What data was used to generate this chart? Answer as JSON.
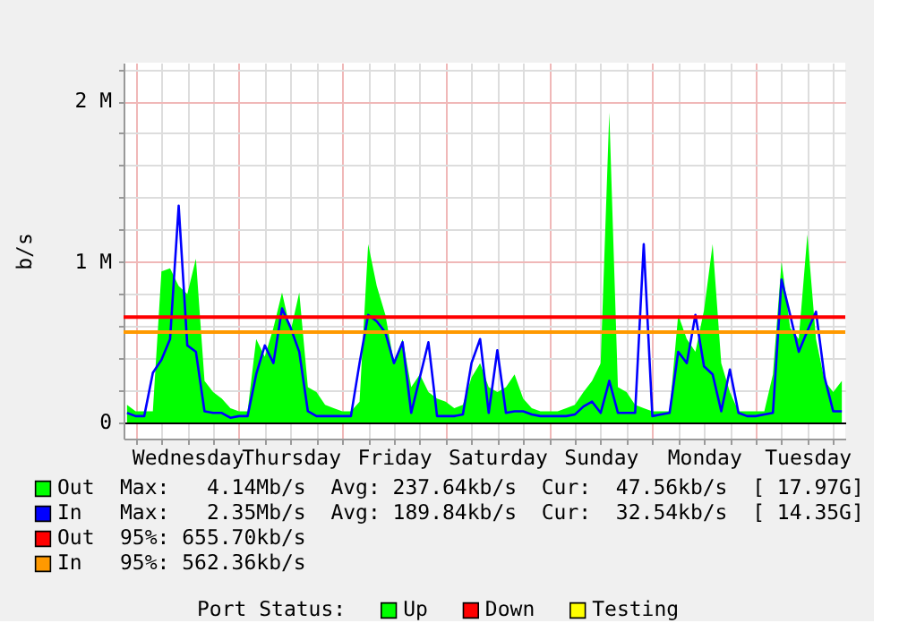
{
  "chart_data": [
    {
      "type": "area",
      "ylabel": "b/s",
      "categories": [
        null,
        null,
        null,
        null,
        null,
        null,
        null,
        "Wednesday",
        null,
        null,
        null,
        null,
        null,
        null,
        null,
        null,
        null,
        null,
        null,
        "Thursday",
        null,
        null,
        null,
        null,
        null,
        null,
        null,
        null,
        null,
        null,
        null,
        "Friday",
        null,
        null,
        null,
        null,
        null,
        null,
        null,
        null,
        null,
        null,
        null,
        "Saturday",
        null,
        null,
        null,
        null,
        null,
        null,
        null,
        null,
        null,
        null,
        null,
        "Sunday",
        null,
        null,
        null,
        null,
        null,
        null,
        null,
        null,
        null,
        null,
        null,
        "Monday",
        null,
        null,
        null,
        null,
        null,
        null,
        null,
        null,
        null,
        null,
        null,
        "Tuesday",
        null,
        null,
        null,
        null
      ],
      "ylim": [
        -0.1,
        2.24
      ],
      "yticks": [
        0,
        {
          "value": 0.2,
          "label": null
        },
        {
          "value": 0.4,
          "label": null
        },
        {
          "value": 0.6,
          "label": null
        },
        {
          "value": 0.8,
          "label": null
        },
        {
          "value": 1,
          "label": "1 M"
        },
        {
          "value": 1.2,
          "label": null
        },
        {
          "value": 1.4,
          "label": null
        },
        {
          "value": 1.6,
          "label": null
        },
        {
          "value": 1.8,
          "label": null
        },
        {
          "value": 2,
          "label": "2 M"
        },
        {
          "value": 2.2,
          "label": null
        }
      ],
      "grid": true,
      "legend": "bottom",
      "series": [
        {
          "name": "Out",
          "type": "area",
          "color": "#00ff00",
          "values": [
            0.11,
            0.07,
            0.07,
            0.07,
            0.94,
            0.96,
            0.85,
            0.8,
            1.02,
            0.26,
            0.19,
            0.15,
            0.09,
            0.07,
            0.07,
            0.52,
            0.41,
            0.59,
            0.81,
            0.57,
            0.81,
            0.22,
            0.19,
            0.11,
            0.09,
            0.07,
            0.07,
            0.13,
            1.11,
            0.85,
            0.67,
            0.37,
            0.52,
            0.22,
            0.3,
            0.19,
            0.15,
            0.13,
            0.09,
            0.11,
            0.28,
            0.37,
            0.22,
            0.19,
            0.22,
            0.3,
            0.15,
            0.09,
            0.07,
            0.07,
            0.07,
            0.09,
            0.11,
            0.19,
            0.26,
            0.37,
            1.93,
            0.22,
            0.19,
            0.11,
            0.09,
            0.07,
            0.07,
            0.07,
            0.67,
            0.52,
            0.44,
            0.7,
            1.11,
            0.37,
            0.19,
            0.07,
            0.07,
            0.07,
            0.07,
            0.3,
            1.0,
            0.59,
            0.52,
            1.17,
            0.52,
            0.26,
            0.19,
            0.26
          ]
        },
        {
          "name": "In",
          "type": "line",
          "color": "#0000ff",
          "values": [
            0.06,
            0.04,
            0.04,
            0.31,
            0.39,
            0.52,
            1.35,
            0.48,
            0.44,
            0.07,
            0.06,
            0.06,
            0.03,
            0.04,
            0.04,
            0.3,
            0.48,
            0.37,
            0.71,
            0.59,
            0.44,
            0.07,
            0.04,
            0.04,
            0.04,
            0.04,
            0.04,
            0.37,
            0.67,
            0.63,
            0.56,
            0.37,
            0.5,
            0.06,
            0.28,
            0.5,
            0.04,
            0.04,
            0.04,
            0.05,
            0.37,
            0.52,
            0.06,
            0.45,
            0.06,
            0.07,
            0.07,
            0.05,
            0.04,
            0.04,
            0.04,
            0.04,
            0.05,
            0.1,
            0.13,
            0.06,
            0.26,
            0.06,
            0.06,
            0.06,
            1.11,
            0.04,
            0.05,
            0.06,
            0.44,
            0.37,
            0.67,
            0.35,
            0.3,
            0.07,
            0.33,
            0.06,
            0.04,
            0.04,
            0.05,
            0.06,
            0.89,
            0.67,
            0.44,
            0.57,
            0.69,
            0.28,
            0.07,
            0.07
          ]
        }
      ],
      "ref_lines": [
        {
          "axis": "y",
          "value": 0.6557,
          "label": "Out",
          "color": "#ff0000"
        },
        {
          "axis": "y",
          "value": 0.56236,
          "label": "In",
          "color": "#ff9900"
        }
      ],
      "annotations": [
        "Max:   4.14Mb/s  Avg: 237.64kb/s  Cur:  47.56kb/s  [ 17.97G]",
        "Max:   2.35Mb/s  Avg: 189.84kb/s  Cur:  32.54kb/s  [ 14.35G]",
        "95%: 655.70kb/s",
        "95%: 562.36kb/s"
      ]
    },
    {
      "type": "other",
      "title": "Port Status:",
      "categories": [
        "Up",
        "Down",
        "Testing"
      ],
      "colors": [
        "#00ff00",
        "#ff0000",
        "#ffff00"
      ]
    }
  ]
}
